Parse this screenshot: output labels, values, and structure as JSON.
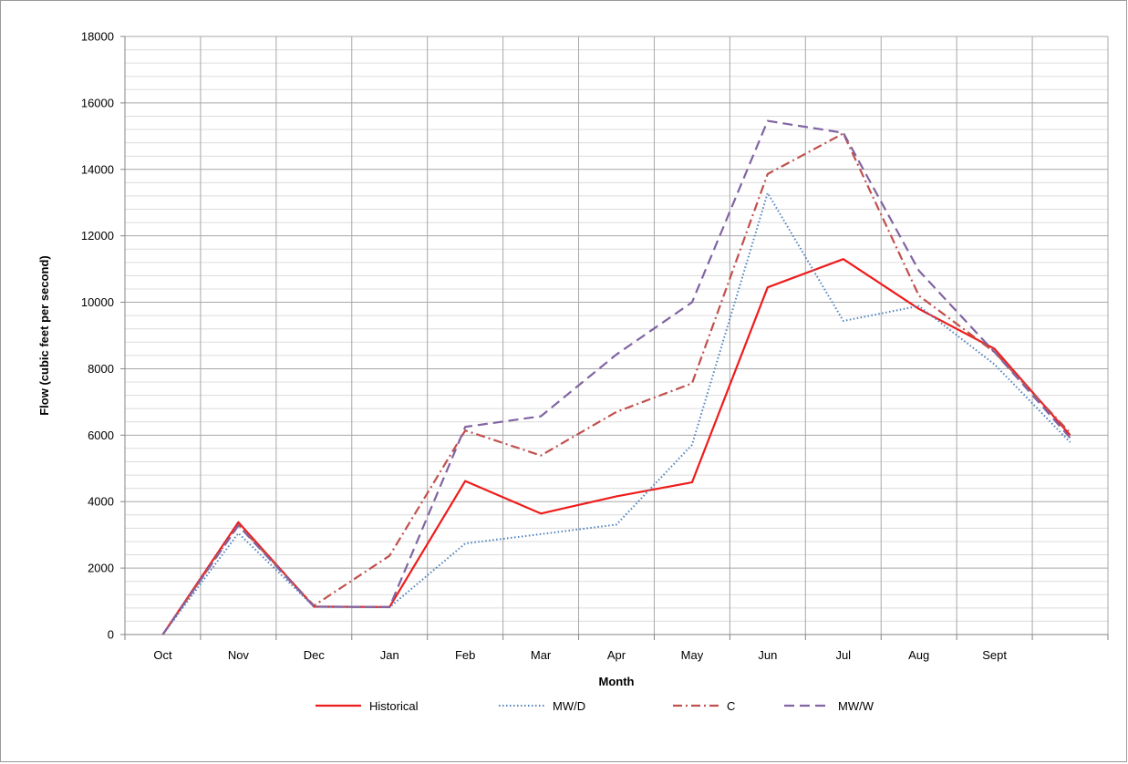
{
  "chart_data": {
    "type": "line",
    "title": "",
    "xlabel": "Month",
    "ylabel": "Flow (cubic feet per second)",
    "ylim": [
      0,
      18000
    ],
    "y_major_step": 2000,
    "y_minor_step": 400,
    "yticks": [
      "0",
      "2000",
      "4000",
      "6000",
      "8000",
      "10000",
      "12000",
      "14000",
      "16000",
      "18000"
    ],
    "categories": [
      "Oct",
      "Nov",
      "Dec",
      "Jan",
      "Feb",
      "Mar",
      "Apr",
      "May",
      "Jun",
      "Jul",
      "Aug",
      "Sept",
      ""
    ],
    "grid": true,
    "legend_position": "bottom",
    "series": [
      {
        "name": "Historical",
        "color": "#ee1c1c",
        "dash": "solid",
        "values": [
          0,
          3380,
          840,
          830,
          4620,
          3640,
          4160,
          4580,
          10450,
          11300,
          9800,
          8600,
          6000
        ]
      },
      {
        "name": "MW/D",
        "color": "#4f81bd",
        "dash": "dotted",
        "values": [
          0,
          3050,
          840,
          820,
          2740,
          3020,
          3310,
          5710,
          13290,
          9440,
          9890,
          8130,
          5790
        ]
      },
      {
        "name": "C",
        "color": "#c0504d",
        "dash": "dashdot",
        "values": [
          0,
          3300,
          870,
          2370,
          6140,
          5390,
          6700,
          7560,
          13860,
          15080,
          10200,
          8500,
          6070
        ]
      },
      {
        "name": "MW/W",
        "color": "#8064a2",
        "dash": "dashed",
        "values": [
          0,
          3280,
          840,
          830,
          6250,
          6570,
          8430,
          10000,
          15460,
          15100,
          10950,
          8500,
          5920
        ]
      }
    ]
  }
}
